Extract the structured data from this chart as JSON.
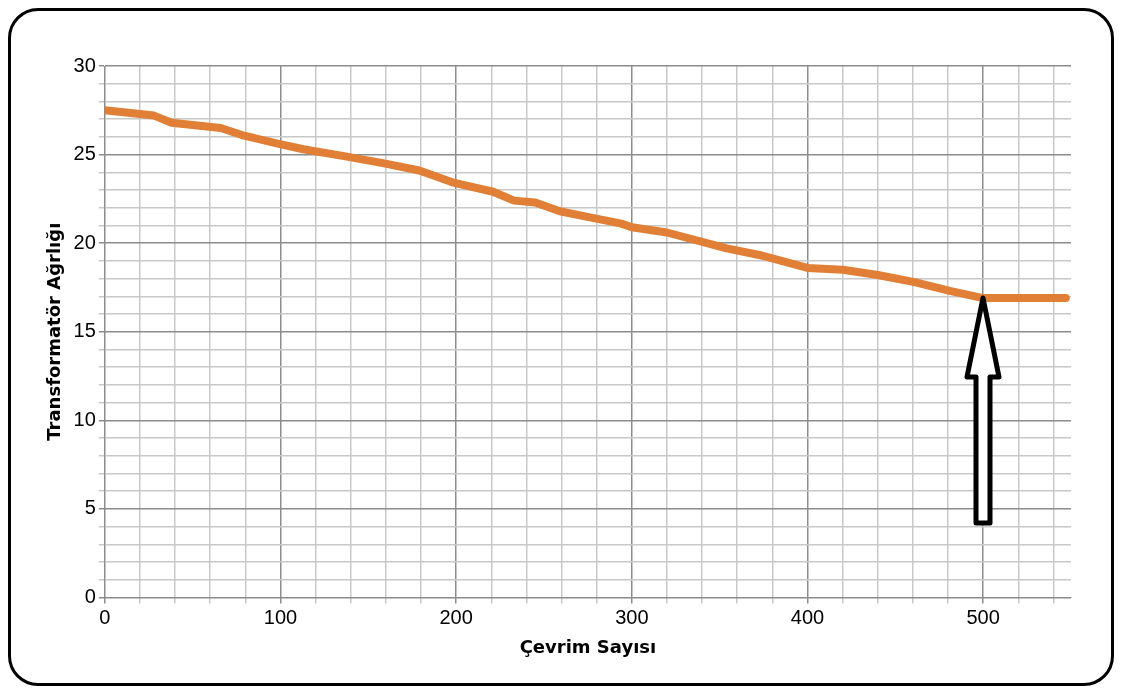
{
  "chart_data": {
    "type": "line",
    "xlabel": "Çevrim Sayısı",
    "ylabel": "Transformatör Ağrlığı",
    "x": [
      0,
      28,
      38,
      66,
      78,
      99,
      113,
      137,
      159,
      179,
      199,
      221,
      233,
      245,
      259,
      274,
      294,
      300,
      320,
      354,
      374,
      400,
      420,
      440,
      461,
      481,
      500,
      547
    ],
    "series": [
      {
        "color": "#e07f35",
        "values": [
          27.5,
          27.2,
          26.8,
          26.5,
          26.1,
          25.6,
          25.3,
          24.9,
          24.5,
          24.1,
          23.4,
          22.9,
          22.4,
          22.3,
          21.8,
          21.5,
          21.1,
          20.9,
          20.6,
          19.7,
          19.3,
          18.6,
          18.5,
          18.2,
          17.8,
          17.3,
          16.9,
          16.9
        ]
      }
    ],
    "xlim": [
      0,
      550
    ],
    "xticks": [
      0,
      {
        "value": 20,
        "label": null
      },
      {
        "value": 40,
        "label": null
      },
      {
        "value": 60,
        "label": null
      },
      {
        "value": 80,
        "label": null
      },
      100,
      {
        "value": 120,
        "label": null
      },
      {
        "value": 140,
        "label": null
      },
      {
        "value": 160,
        "label": null
      },
      {
        "value": 180,
        "label": null
      },
      200,
      {
        "value": 220,
        "label": null
      },
      {
        "value": 240,
        "label": null
      },
      {
        "value": 260,
        "label": null
      },
      {
        "value": 280,
        "label": null
      },
      300,
      {
        "value": 320,
        "label": null
      },
      {
        "value": 340,
        "label": null
      },
      {
        "value": 360,
        "label": null
      },
      {
        "value": 380,
        "label": null
      },
      400,
      {
        "value": 420,
        "label": null
      },
      {
        "value": 440,
        "label": null
      },
      {
        "value": 460,
        "label": null
      },
      {
        "value": 480,
        "label": null
      },
      500,
      {
        "value": 520,
        "label": null
      },
      {
        "value": 540,
        "label": null
      }
    ],
    "ylim": [
      0,
      30
    ],
    "yticks": [
      0,
      {
        "value": 1,
        "label": null
      },
      {
        "value": 2,
        "label": null
      },
      {
        "value": 3,
        "label": null
      },
      {
        "value": 4,
        "label": null
      },
      5,
      {
        "value": 6,
        "label": null
      },
      {
        "value": 7,
        "label": null
      },
      {
        "value": 8,
        "label": null
      },
      {
        "value": 9,
        "label": null
      },
      10,
      {
        "value": 11,
        "label": null
      },
      {
        "value": 12,
        "label": null
      },
      {
        "value": 13,
        "label": null
      },
      {
        "value": 14,
        "label": null
      },
      15,
      {
        "value": 16,
        "label": null
      },
      {
        "value": 17,
        "label": null
      },
      {
        "value": 18,
        "label": null
      },
      {
        "value": 19,
        "label": null
      },
      20,
      {
        "value": 21,
        "label": null
      },
      {
        "value": 22,
        "label": null
      },
      {
        "value": 23,
        "label": null
      },
      {
        "value": 24,
        "label": null
      },
      25,
      {
        "value": 26,
        "label": null
      },
      {
        "value": 27,
        "label": null
      },
      {
        "value": 28,
        "label": null
      },
      {
        "value": 29,
        "label": null
      },
      30
    ],
    "grid": true,
    "marker": "none",
    "line_style": "solid",
    "legend": false
  }
}
